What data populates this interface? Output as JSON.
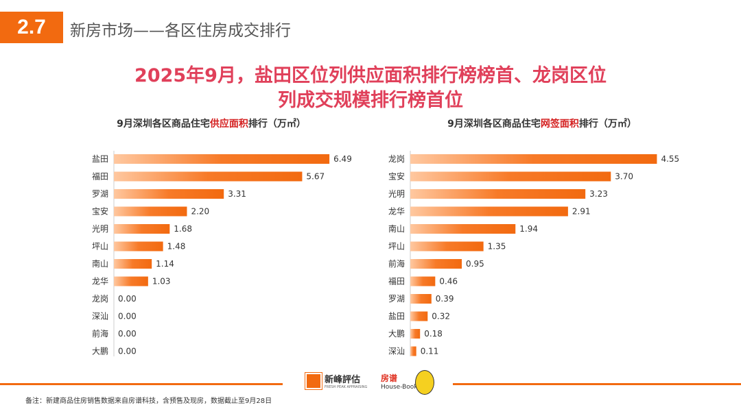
{
  "header": {
    "section": "2.7",
    "title": "新房市场——各区住房成交排行"
  },
  "headline": {
    "line1": "2025年9月，盐田区位列供应面积排行榜榜首、龙岗区位",
    "line2": "列成交规模排行榜首位"
  },
  "chart_data": [
    {
      "type": "bar",
      "orientation": "horizontal",
      "title_pre": "9月深圳各区商品住宅",
      "title_hl": "供应面积",
      "title_post": "排行（万㎡）",
      "categories": [
        "盐田",
        "福田",
        "罗湖",
        "宝安",
        "光明",
        "坪山",
        "南山",
        "龙华",
        "龙岗",
        "深汕",
        "前海",
        "大鹏"
      ],
      "values": [
        6.49,
        5.67,
        3.31,
        2.2,
        1.68,
        1.48,
        1.14,
        1.03,
        0.0,
        0.0,
        0.0,
        0.0
      ],
      "labels": [
        "6.49",
        "5.67",
        "3.31",
        "2.20",
        "1.68",
        "1.48",
        "1.14",
        "1.03",
        "0.00",
        "0.00",
        "0.00",
        "0.00"
      ],
      "xlim": [
        0,
        7
      ]
    },
    {
      "type": "bar",
      "orientation": "horizontal",
      "title_pre": "9月深圳各区商品住宅",
      "title_hl": "网签面积",
      "title_post": "排行（万㎡）",
      "categories": [
        "龙岗",
        "宝安",
        "光明",
        "龙华",
        "南山",
        "坪山",
        "前海",
        "福田",
        "罗湖",
        "盐田",
        "大鹏",
        "深汕"
      ],
      "values": [
        4.55,
        3.7,
        3.23,
        2.91,
        1.94,
        1.35,
        0.95,
        0.46,
        0.39,
        0.32,
        0.18,
        0.11
      ],
      "labels": [
        "4.55",
        "3.70",
        "3.23",
        "2.91",
        "1.94",
        "1.35",
        "0.95",
        "0.46",
        "0.39",
        "0.32",
        "0.18",
        "0.11"
      ],
      "xlim": [
        0,
        4.8
      ]
    }
  ],
  "footer": {
    "note": "备注：新建商品住房销售数据来自房谱科技，含预售及现房，数据截止至9月28日",
    "logo1": "新峰評估",
    "logo1_sub": "FRESH PEAK APPRAISING",
    "logo2": "房谱",
    "logo2_sub": "House-Book"
  },
  "colors": {
    "accent": "#f26a10",
    "headline": "#e0405a"
  }
}
